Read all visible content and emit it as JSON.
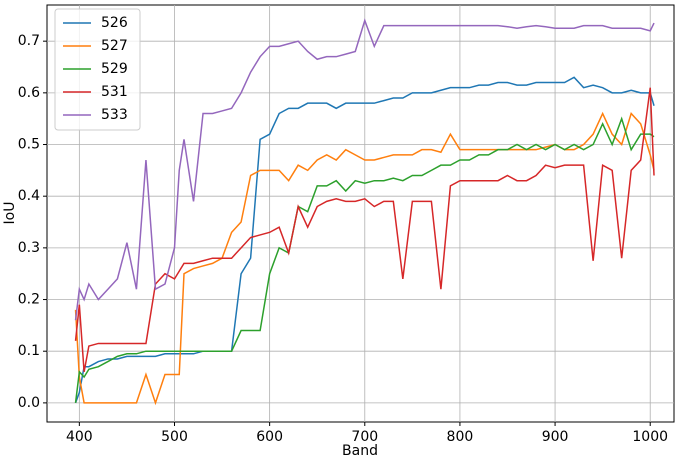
{
  "chart_data": {
    "type": "line",
    "xlabel": "Band",
    "ylabel": "IoU",
    "x": [
      396,
      400,
      405,
      410,
      420,
      430,
      440,
      450,
      460,
      470,
      480,
      490,
      500,
      505,
      510,
      520,
      530,
      540,
      550,
      560,
      570,
      580,
      590,
      600,
      610,
      620,
      630,
      640,
      650,
      660,
      670,
      680,
      690,
      700,
      710,
      720,
      730,
      740,
      750,
      760,
      770,
      780,
      790,
      800,
      810,
      820,
      830,
      840,
      850,
      860,
      870,
      880,
      890,
      900,
      910,
      920,
      930,
      940,
      950,
      960,
      970,
      980,
      990,
      1000,
      1004
    ],
    "series": [
      {
        "name": "526",
        "color": "#1f77b4",
        "values": [
          0.0,
          0.02,
          0.07,
          0.07,
          0.08,
          0.085,
          0.085,
          0.09,
          0.09,
          0.09,
          0.09,
          0.095,
          0.095,
          0.095,
          0.095,
          0.095,
          0.1,
          0.1,
          0.1,
          0.1,
          0.25,
          0.28,
          0.51,
          0.52,
          0.56,
          0.57,
          0.57,
          0.58,
          0.58,
          0.58,
          0.57,
          0.58,
          0.58,
          0.58,
          0.58,
          0.585,
          0.59,
          0.59,
          0.6,
          0.6,
          0.6,
          0.605,
          0.61,
          0.61,
          0.61,
          0.615,
          0.615,
          0.62,
          0.62,
          0.615,
          0.615,
          0.62,
          0.62,
          0.62,
          0.62,
          0.63,
          0.61,
          0.615,
          0.61,
          0.6,
          0.6,
          0.605,
          0.6,
          0.6,
          0.575
        ]
      },
      {
        "name": "527",
        "color": "#ff7f0e",
        "values": [
          0.18,
          0.05,
          0.0,
          0.0,
          0.0,
          0.0,
          0.0,
          0.0,
          0.0,
          0.055,
          0.0,
          0.055,
          0.055,
          0.055,
          0.25,
          0.26,
          0.265,
          0.27,
          0.28,
          0.33,
          0.35,
          0.44,
          0.45,
          0.45,
          0.45,
          0.43,
          0.46,
          0.45,
          0.47,
          0.48,
          0.47,
          0.49,
          0.48,
          0.47,
          0.47,
          0.475,
          0.48,
          0.48,
          0.48,
          0.49,
          0.49,
          0.485,
          0.52,
          0.49,
          0.49,
          0.49,
          0.49,
          0.49,
          0.49,
          0.49,
          0.49,
          0.49,
          0.495,
          0.5,
          0.49,
          0.49,
          0.5,
          0.52,
          0.56,
          0.52,
          0.5,
          0.56,
          0.54,
          0.48,
          0.45
        ]
      },
      {
        "name": "529",
        "color": "#2ca02c",
        "values": [
          0.0,
          0.06,
          0.05,
          0.065,
          0.07,
          0.08,
          0.09,
          0.095,
          0.095,
          0.1,
          0.1,
          0.1,
          0.1,
          0.1,
          0.1,
          0.1,
          0.1,
          0.1,
          0.1,
          0.1,
          0.14,
          0.14,
          0.14,
          0.25,
          0.3,
          0.29,
          0.38,
          0.37,
          0.42,
          0.42,
          0.43,
          0.41,
          0.43,
          0.425,
          0.43,
          0.43,
          0.435,
          0.43,
          0.44,
          0.44,
          0.45,
          0.46,
          0.46,
          0.47,
          0.47,
          0.48,
          0.48,
          0.49,
          0.49,
          0.5,
          0.49,
          0.5,
          0.49,
          0.5,
          0.49,
          0.5,
          0.49,
          0.5,
          0.54,
          0.5,
          0.55,
          0.49,
          0.52,
          0.52,
          0.515
        ]
      },
      {
        "name": "531",
        "color": "#d62728",
        "values": [
          0.12,
          0.19,
          0.06,
          0.11,
          0.115,
          0.115,
          0.115,
          0.115,
          0.115,
          0.115,
          0.23,
          0.25,
          0.24,
          0.255,
          0.27,
          0.27,
          0.275,
          0.28,
          0.28,
          0.28,
          0.3,
          0.32,
          0.325,
          0.33,
          0.34,
          0.29,
          0.38,
          0.34,
          0.38,
          0.39,
          0.395,
          0.39,
          0.39,
          0.395,
          0.38,
          0.39,
          0.39,
          0.24,
          0.39,
          0.39,
          0.39,
          0.22,
          0.42,
          0.43,
          0.43,
          0.43,
          0.43,
          0.43,
          0.44,
          0.43,
          0.43,
          0.44,
          0.46,
          0.455,
          0.46,
          0.46,
          0.46,
          0.275,
          0.46,
          0.45,
          0.28,
          0.45,
          0.47,
          0.61,
          0.44
        ]
      },
      {
        "name": "533",
        "color": "#9467bd",
        "values": [
          0.16,
          0.22,
          0.2,
          0.23,
          0.2,
          0.22,
          0.24,
          0.31,
          0.22,
          0.47,
          0.22,
          0.23,
          0.3,
          0.45,
          0.51,
          0.39,
          0.56,
          0.56,
          0.565,
          0.57,
          0.6,
          0.64,
          0.67,
          0.69,
          0.69,
          0.695,
          0.7,
          0.68,
          0.665,
          0.67,
          0.67,
          0.675,
          0.68,
          0.74,
          0.69,
          0.73,
          0.73,
          0.73,
          0.73,
          0.73,
          0.73,
          0.73,
          0.73,
          0.73,
          0.73,
          0.73,
          0.73,
          0.73,
          0.728,
          0.725,
          0.728,
          0.73,
          0.728,
          0.725,
          0.725,
          0.725,
          0.73,
          0.73,
          0.73,
          0.725,
          0.725,
          0.725,
          0.725,
          0.72,
          0.735
        ]
      }
    ],
    "xlim": [
      366,
      1025
    ],
    "ylim": [
      -0.037,
      0.77
    ],
    "xticks": [
      400,
      500,
      600,
      700,
      800,
      900,
      1000
    ],
    "yticks": [
      {
        "value": 0,
        "label": "0.0"
      },
      0.1,
      0.2,
      0.3,
      0.4,
      0.5,
      0.6,
      0.7
    ],
    "grid": true,
    "legend": "upper left"
  }
}
